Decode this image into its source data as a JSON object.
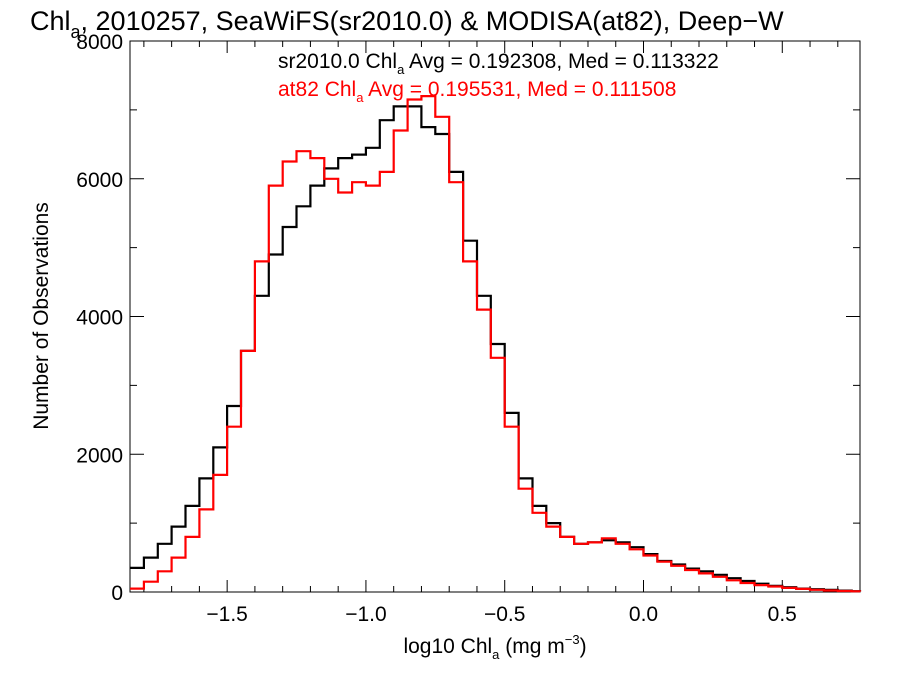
{
  "chart_data": {
    "type": "line",
    "title_main": "Chl",
    "title_sub": "a",
    "title_rest": ", 2010257, SeaWiFS(sr2010.0) & MODISA(at82), Deep−W",
    "xlabel_pre": "log10 Chl",
    "xlabel_sub": "a",
    "xlabel_unit": " (mg m",
    "xlabel_exp": "−3",
    "xlabel_close": ")",
    "ylabel": "Number of Observations",
    "xlim": [
      -1.85,
      0.78
    ],
    "ylim": [
      0,
      8000
    ],
    "xticks": [
      -1.5,
      -1.0,
      -0.5,
      0.0,
      0.5
    ],
    "xtick_labels": [
      "−1.5",
      "−1.0",
      "−0.5",
      "0.0",
      "0.5"
    ],
    "yticks": [
      0,
      2000,
      4000,
      6000,
      8000
    ],
    "ytick_labels": [
      "0",
      "2000",
      "4000",
      "6000",
      "8000"
    ],
    "grid": false,
    "legend": [
      {
        "pre": "sr2010.0 Chl",
        "sub": "a",
        "post": " Avg = 0.192308, Med = 0.113322",
        "color": "#000000"
      },
      {
        "pre": "at82 Chl",
        "sub": "a",
        "post": " Avg = 0.195531, Med = 0.111508",
        "color": "#ff0000"
      }
    ],
    "series": [
      {
        "color": "#000000",
        "x": [
          -1.85,
          -1.8,
          -1.75,
          -1.7,
          -1.65,
          -1.6,
          -1.55,
          -1.5,
          -1.45,
          -1.4,
          -1.35,
          -1.3,
          -1.25,
          -1.2,
          -1.15,
          -1.1,
          -1.05,
          -1.0,
          -0.95,
          -0.9,
          -0.85,
          -0.8,
          -0.75,
          -0.7,
          -0.65,
          -0.6,
          -0.55,
          -0.5,
          -0.45,
          -0.4,
          -0.35,
          -0.3,
          -0.25,
          -0.2,
          -0.15,
          -0.1,
          -0.05,
          0.0,
          0.05,
          0.1,
          0.15,
          0.2,
          0.25,
          0.3,
          0.35,
          0.4,
          0.45,
          0.5,
          0.55,
          0.6,
          0.65,
          0.7,
          0.75,
          0.78
        ],
        "y": [
          350,
          500,
          700,
          950,
          1250,
          1650,
          2100,
          2700,
          3500,
          4300,
          4900,
          5300,
          5600,
          5900,
          6150,
          6300,
          6350,
          6450,
          6850,
          7050,
          7050,
          6750,
          6650,
          6100,
          5100,
          4300,
          3600,
          2600,
          1650,
          1250,
          1000,
          800,
          700,
          720,
          750,
          720,
          650,
          550,
          450,
          400,
          340,
          300,
          250,
          200,
          160,
          120,
          90,
          70,
          50,
          40,
          30,
          20,
          12,
          8
        ]
      },
      {
        "color": "#ff0000",
        "x": [
          -1.85,
          -1.8,
          -1.75,
          -1.7,
          -1.65,
          -1.6,
          -1.55,
          -1.5,
          -1.45,
          -1.4,
          -1.35,
          -1.3,
          -1.25,
          -1.2,
          -1.15,
          -1.1,
          -1.05,
          -1.0,
          -0.95,
          -0.9,
          -0.85,
          -0.8,
          -0.75,
          -0.7,
          -0.65,
          -0.6,
          -0.55,
          -0.5,
          -0.45,
          -0.4,
          -0.35,
          -0.3,
          -0.25,
          -0.2,
          -0.15,
          -0.1,
          -0.05,
          0.0,
          0.05,
          0.1,
          0.15,
          0.2,
          0.25,
          0.3,
          0.35,
          0.4,
          0.45,
          0.5,
          0.55,
          0.6,
          0.65,
          0.7,
          0.75,
          0.78
        ],
        "y": [
          50,
          150,
          300,
          500,
          800,
          1200,
          1700,
          2400,
          3500,
          4800,
          5900,
          6250,
          6400,
          6300,
          6000,
          5800,
          5950,
          5900,
          6100,
          6700,
          7150,
          7200,
          6900,
          5950,
          4800,
          4100,
          3400,
          2400,
          1500,
          1150,
          950,
          800,
          700,
          720,
          780,
          700,
          620,
          530,
          440,
          380,
          320,
          270,
          220,
          170,
          130,
          100,
          80,
          60,
          45,
          32,
          22,
          15,
          10,
          6
        ]
      }
    ]
  }
}
